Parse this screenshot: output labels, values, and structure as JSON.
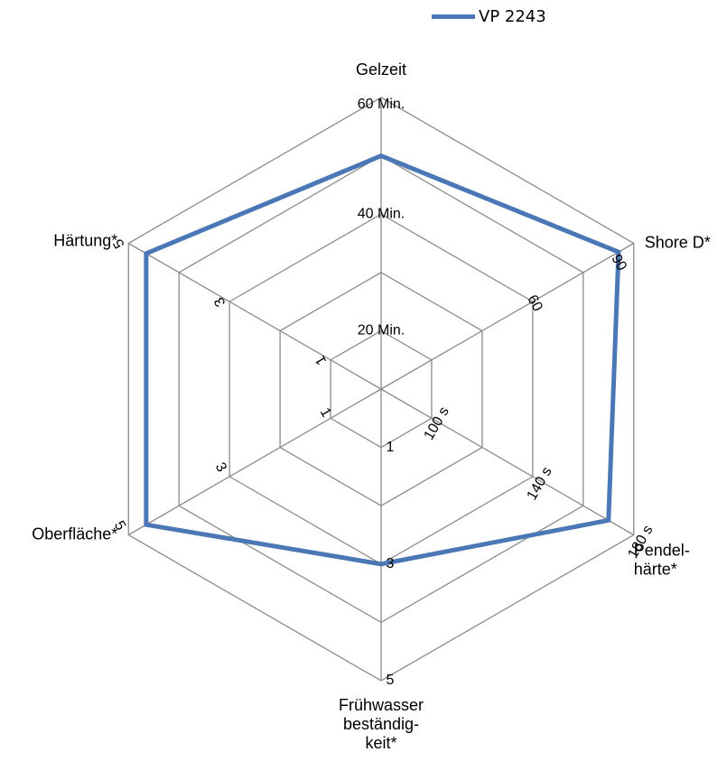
{
  "chart_data": {
    "type": "radar",
    "legend": {
      "position": "top",
      "entries": [
        "VP 2243"
      ]
    },
    "axes": [
      {
        "label": [
          "Gelzeit"
        ],
        "ticks": [
          "20 Min.",
          "40 Min.",
          "60 Min."
        ]
      },
      {
        "label": [
          "Shore D*"
        ],
        "ticks": [
          "60",
          "90"
        ]
      },
      {
        "label": [
          "Pendel-",
          "härte*"
        ],
        "ticks": [
          "100 s",
          "140 s",
          "180 s"
        ]
      },
      {
        "label": [
          "Frühwasser",
          "beständig-",
          "keit*"
        ],
        "ticks": [
          "1",
          "3",
          "5"
        ]
      },
      {
        "label": [
          "Oberfläche*"
        ],
        "ticks": [
          "1",
          "3",
          "5"
        ]
      },
      {
        "label": [
          "Härtung*"
        ],
        "ticks": [
          "1",
          "3",
          "5"
        ]
      }
    ],
    "series": [
      {
        "name": "VP 2243",
        "color": "#4a77b5",
        "values": [
          0.8,
          0.94,
          0.9,
          0.6,
          0.93,
          0.93
        ]
      }
    ],
    "grid": true
  }
}
